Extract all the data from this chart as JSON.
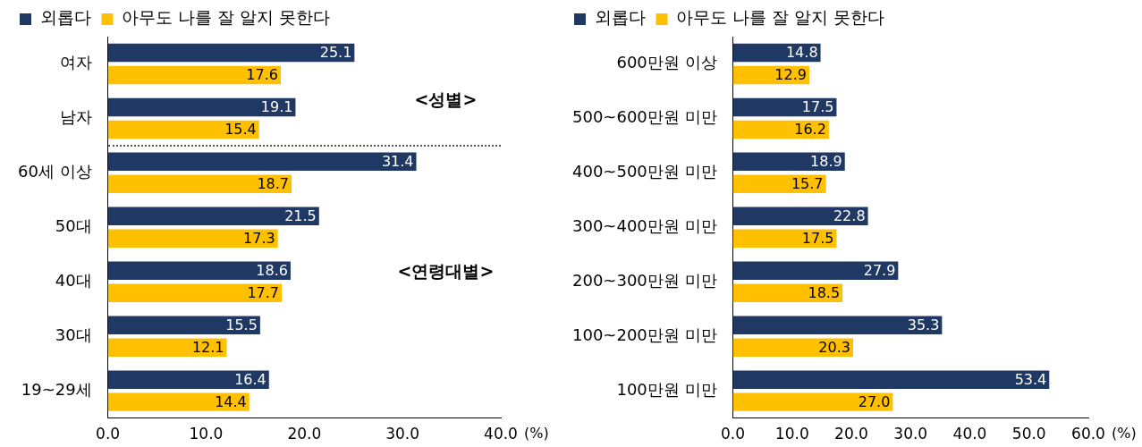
{
  "chart_data": [
    {
      "type": "bar",
      "orientation": "horizontal",
      "categories": [
        "여자",
        "남자",
        "60세 이상",
        "50대",
        "40대",
        "30대",
        "19~29세"
      ],
      "series": [
        {
          "name": "외롭다",
          "color": "#203864",
          "values": [
            25.1,
            19.1,
            31.4,
            21.5,
            18.6,
            15.5,
            16.4
          ]
        },
        {
          "name": "아무도 나를 잘 알지 못한다",
          "color": "#ffc000",
          "values": [
            17.6,
            15.4,
            18.7,
            17.3,
            17.7,
            12.1,
            14.4
          ]
        }
      ],
      "xlim": [
        0,
        40
      ],
      "xticks": [
        {
          "value": 0,
          "label": "0.0"
        },
        {
          "value": 10,
          "label": "10.0"
        },
        {
          "value": 20,
          "label": "20.0"
        },
        {
          "value": 30,
          "label": "30.0"
        },
        {
          "value": 40,
          "label": "40.0"
        }
      ],
      "xlabel": "(%)",
      "annotations": [
        "<성별>",
        "<연령대별>"
      ],
      "data_labels": true,
      "legend": "top",
      "grid": false
    },
    {
      "type": "bar",
      "orientation": "horizontal",
      "categories": [
        "600만원 이상",
        "500~600만원 미만",
        "400~500만원 미만",
        "300~400만원 미만",
        "200~300만원 미만",
        "100~200만원 미만",
        "100만원 미만"
      ],
      "series": [
        {
          "name": "외롭다",
          "color": "#203864",
          "values": [
            14.8,
            17.5,
            18.9,
            22.8,
            27.9,
            35.3,
            53.4
          ]
        },
        {
          "name": "아무도 나를 잘 알지 못한다",
          "color": "#ffc000",
          "values": [
            12.9,
            16.2,
            15.7,
            17.5,
            18.5,
            20.3,
            27.0
          ],
          "value_labels": [
            "12.9",
            "16.2",
            "15.7",
            "17.5",
            "18.5",
            "20.3",
            "27.0"
          ]
        }
      ],
      "xlim": [
        0,
        60
      ],
      "xticks": [
        {
          "value": 0,
          "label": "0.0"
        },
        {
          "value": 10,
          "label": "10.0"
        },
        {
          "value": 20,
          "label": "20.0"
        },
        {
          "value": 30,
          "label": "30.0"
        },
        {
          "value": 40,
          "label": "40.0"
        },
        {
          "value": 50,
          "label": "50.0"
        },
        {
          "value": 60,
          "label": "60.0"
        }
      ],
      "xlabel": "(%)",
      "data_labels": true,
      "legend": "top",
      "grid": false
    }
  ]
}
